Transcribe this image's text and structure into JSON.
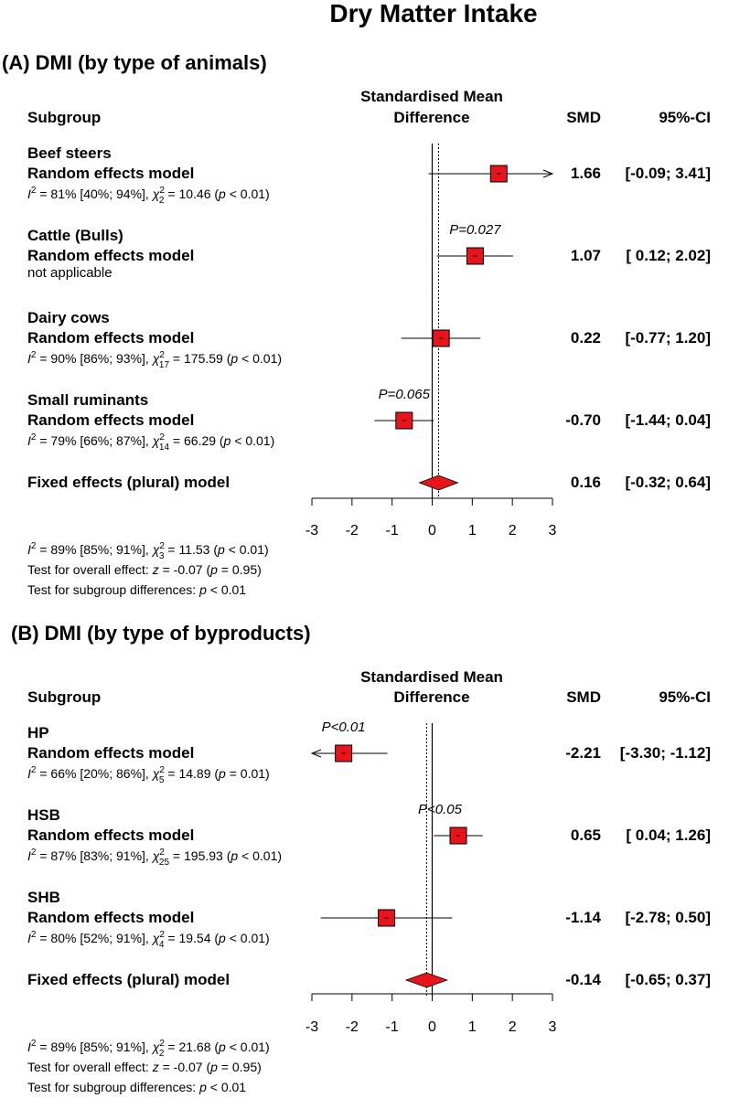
{
  "figure_title": "Dry Matter Intake",
  "colors": {
    "marker_fill": "#e8141b",
    "marker_stroke": "#000000",
    "diamond_fill": "#e8141b",
    "ink": "#000000"
  },
  "chart_data": [
    {
      "type": "forest",
      "panel_title": "(A) DMI (by type of animals)",
      "header": {
        "subgroup": "Subgroup",
        "effect_line1": "Standardised Mean",
        "effect_line2": "Difference",
        "smd": "SMD",
        "ci": "95%-CI"
      },
      "xlim": [
        -3,
        3
      ],
      "xticks": [
        -3,
        -2,
        -1,
        0,
        1,
        2,
        3
      ],
      "xtick_labels": [
        "-3",
        "-2",
        "-1",
        "0",
        "1",
        "2",
        "3"
      ],
      "reference_line": 0,
      "pooled_line": 0.16,
      "subgroups": [
        {
          "name": "Beef steers",
          "model": "Random effects model",
          "smd": 1.66,
          "lower": -0.09,
          "upper": 3.41,
          "arrow": "right",
          "smd_text": "1.66",
          "ci_text": "[-0.09; 3.41]",
          "annotation": "",
          "het": {
            "i2": "81%",
            "ci": "[40%; 94%]",
            "df": "2",
            "chi2": "10.46",
            "p_sym": "p",
            "p_rel": "< 0.01"
          }
        },
        {
          "name": "Cattle (Bulls)",
          "model": "Random effects model",
          "smd": 1.07,
          "lower": 0.12,
          "upper": 2.02,
          "arrow": "",
          "smd_text": "1.07",
          "ci_text": "[ 0.12; 2.02]",
          "annotation": "P=0.027",
          "note": "not applicable"
        },
        {
          "name": "Dairy cows",
          "model": "Random effects model",
          "smd": 0.22,
          "lower": -0.77,
          "upper": 1.2,
          "arrow": "",
          "smd_text": "0.22",
          "ci_text": "[-0.77; 1.20]",
          "annotation": "",
          "het": {
            "i2": "90%",
            "ci": "[86%; 93%]",
            "df": "17",
            "chi2": "175.59",
            "p_sym": "p",
            "p_rel": "< 0.01"
          }
        },
        {
          "name": "Small ruminants",
          "model": "Random effects model",
          "smd": -0.7,
          "lower": -1.44,
          "upper": 0.04,
          "arrow": "",
          "smd_text": "-0.70",
          "ci_text": "[-1.44; 0.04]",
          "annotation": "P=0.065",
          "het": {
            "i2": "79%",
            "ci": "[66%; 87%]",
            "df": "14",
            "chi2": "66.29",
            "p_sym": "p",
            "p_rel": "< 0.01"
          }
        }
      ],
      "overall": {
        "label": "Fixed effects (plural) model",
        "smd": 0.16,
        "lower": -0.32,
        "upper": 0.64,
        "smd_text": "0.16",
        "ci_text": "[-0.32; 0.64]"
      },
      "footer": {
        "het": {
          "i2": "89%",
          "ci": "[85%; 91%]",
          "df": "3",
          "chi2": "11.53",
          "p_sym": "p",
          "p_rel": "< 0.01"
        },
        "overall_test": {
          "prefix": "Test for overall effect: ",
          "z_sym": "z",
          "z_text": " = -0.07 (",
          "p_sym": "p",
          "p_text": " = 0.95)"
        },
        "subgroup_test": {
          "prefix": "Test for subgroup differences:  ",
          "p_sym": "p",
          "p_text": " < 0.01"
        }
      }
    },
    {
      "type": "forest",
      "panel_title": "(B) DMI (by type of byproducts)",
      "header": {
        "subgroup": "Subgroup",
        "effect_line1": "Standardised Mean",
        "effect_line2": "Difference",
        "smd": "SMD",
        "ci": "95%-CI"
      },
      "xlim": [
        -3,
        3
      ],
      "xticks": [
        -3,
        -2,
        -1,
        0,
        1,
        2,
        3
      ],
      "xtick_labels": [
        "-3",
        "-2",
        "-1",
        "0",
        "1",
        "2",
        "3"
      ],
      "reference_line": 0,
      "pooled_line": -0.14,
      "subgroups": [
        {
          "name": "HP",
          "model": "Random effects model",
          "smd": -2.21,
          "lower": -3.3,
          "upper": -1.12,
          "arrow": "left",
          "smd_text": "-2.21",
          "ci_text": "[-3.30; -1.12]",
          "annotation": "P<0.01",
          "het": {
            "i2": "66%",
            "ci": "[20%; 86%]",
            "df": "5",
            "chi2": "14.89",
            "p_sym": "p",
            "p_rel": "= 0.01"
          }
        },
        {
          "name": "HSB",
          "model": "Random effects model",
          "smd": 0.65,
          "lower": 0.04,
          "upper": 1.26,
          "arrow": "",
          "smd_text": "0.65",
          "ci_text": "[ 0.04; 1.26]",
          "annotation": "P<0.05",
          "het": {
            "i2": "87%",
            "ci": "[83%; 91%]",
            "df": "25",
            "chi2": "195.93",
            "p_sym": "p",
            "p_rel": "< 0.01"
          }
        },
        {
          "name": "SHB",
          "model": "Random effects model",
          "smd": -1.14,
          "lower": -2.78,
          "upper": 0.5,
          "arrow": "",
          "smd_text": "-1.14",
          "ci_text": "[-2.78; 0.50]",
          "annotation": "",
          "het": {
            "i2": "80%",
            "ci": "[52%; 91%]",
            "df": "4",
            "chi2": "19.54",
            "p_sym": "p",
            "p_rel": "< 0.01"
          }
        }
      ],
      "overall": {
        "label": "Fixed effects (plural) model",
        "smd": -0.14,
        "lower": -0.65,
        "upper": 0.37,
        "smd_text": "-0.14",
        "ci_text": "[-0.65; 0.37]"
      },
      "footer": {
        "het": {
          "i2": "89%",
          "ci": "[85%; 91%]",
          "df": "2",
          "chi2": "21.68",
          "p_sym": "p",
          "p_rel": "< 0.01"
        },
        "overall_test": {
          "prefix": "Test for overall effect: ",
          "z_sym": "z",
          "z_text": " = -0.07 (",
          "p_sym": "p",
          "p_text": " = 0.95)"
        },
        "subgroup_test": {
          "prefix": "Test for subgroup differences:  ",
          "p_sym": "p",
          "p_text": " < 0.01"
        }
      }
    }
  ]
}
